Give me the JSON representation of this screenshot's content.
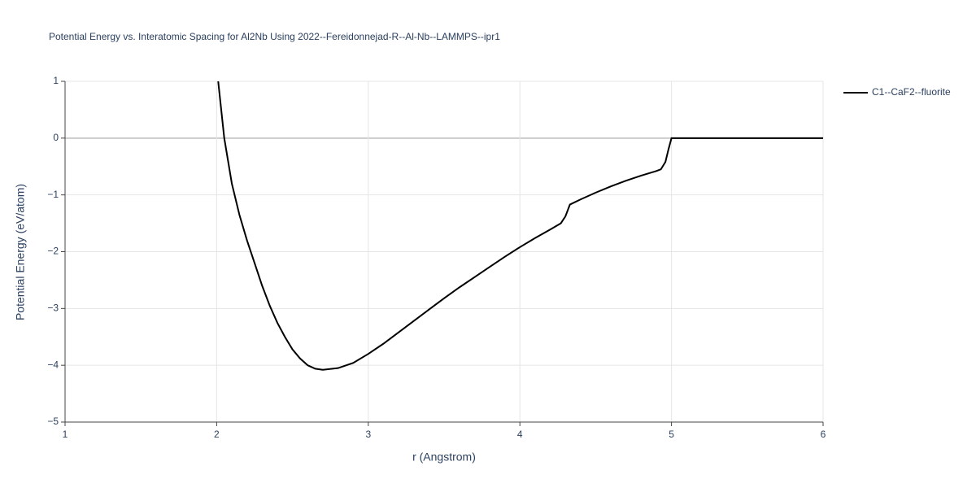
{
  "chart_data": {
    "type": "line",
    "title": "Potential Energy vs. Interatomic Spacing for Al2Nb Using 2022--Fereidonnejad-R--Al-Nb--LAMMPS--ipr1",
    "xlabel": "r (Angstrom)",
    "ylabel": "Potential Energy (eV/atom)",
    "x": [
      2.01,
      2.05,
      2.1,
      2.15,
      2.2,
      2.25,
      2.3,
      2.35,
      2.4,
      2.45,
      2.5,
      2.55,
      2.6,
      2.65,
      2.7,
      2.8,
      2.9,
      3.0,
      3.1,
      3.2,
      3.3,
      3.4,
      3.5,
      3.6,
      3.7,
      3.8,
      3.9,
      4.0,
      4.1,
      4.2,
      4.27,
      4.3,
      4.33,
      4.4,
      4.5,
      4.6,
      4.7,
      4.8,
      4.9,
      4.93,
      4.96,
      4.98,
      5.0,
      6.0
    ],
    "series": [
      {
        "name": "C1--CaF2--fluorite",
        "color": "#000000",
        "values": [
          1.0,
          0.0,
          -0.8,
          -1.35,
          -1.8,
          -2.2,
          -2.6,
          -2.95,
          -3.25,
          -3.5,
          -3.72,
          -3.88,
          -4.0,
          -4.06,
          -4.08,
          -4.05,
          -3.96,
          -3.8,
          -3.62,
          -3.42,
          -3.22,
          -3.02,
          -2.82,
          -2.63,
          -2.45,
          -2.27,
          -2.09,
          -1.92,
          -1.76,
          -1.61,
          -1.5,
          -1.38,
          -1.17,
          -1.08,
          -0.96,
          -0.85,
          -0.75,
          -0.66,
          -0.58,
          -0.55,
          -0.42,
          -0.2,
          0.0,
          0.0
        ]
      }
    ],
    "xlim": [
      1,
      6
    ],
    "xticks": [
      1,
      2,
      3,
      4,
      5,
      6
    ],
    "ylim": [
      -5,
      1
    ],
    "yticks": [
      {
        "value": -5,
        "label": "−5"
      },
      {
        "value": -4,
        "label": "−4"
      },
      {
        "value": -3,
        "label": "−3"
      },
      {
        "value": -2,
        "label": "−2"
      },
      {
        "value": -1,
        "label": "−1"
      },
      0,
      1
    ],
    "grid": true,
    "legend": "right"
  }
}
